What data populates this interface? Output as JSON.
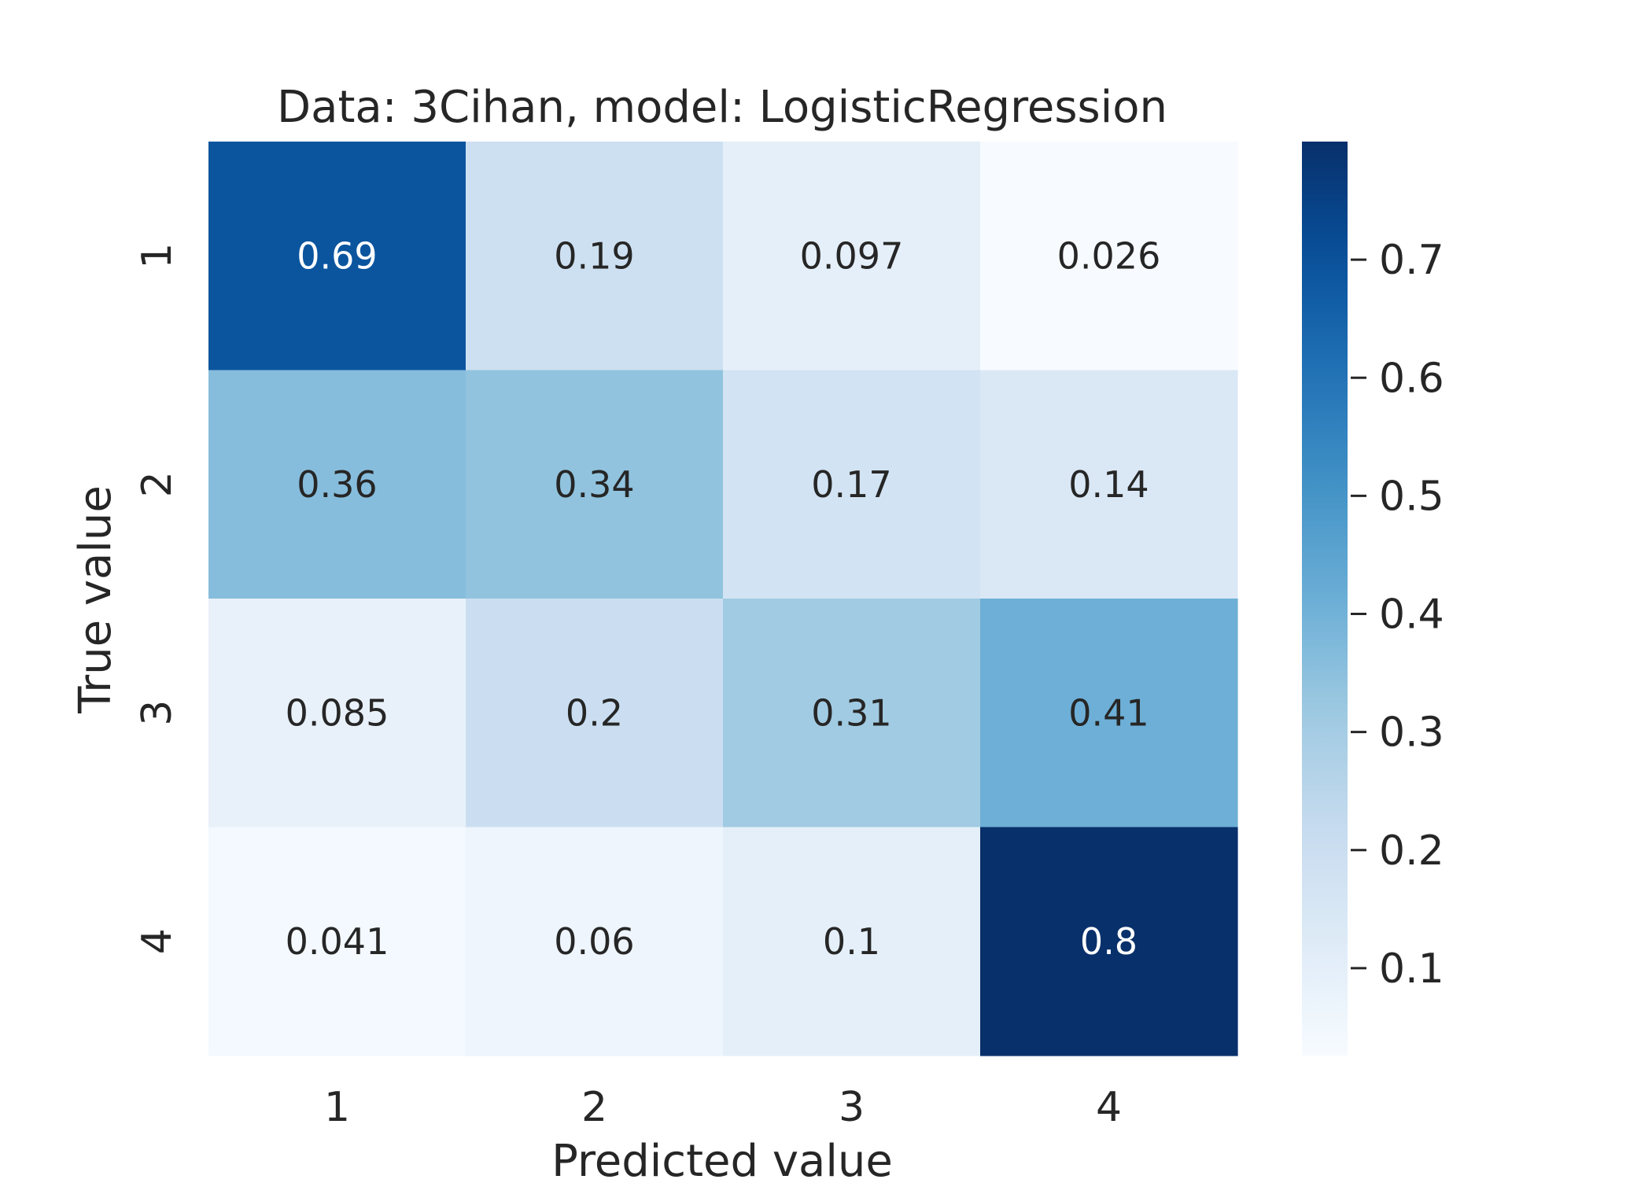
{
  "chart_data": {
    "type": "heatmap",
    "title": "Data: 3Cihan, model: LogisticRegression",
    "xlabel": "Predicted value",
    "ylabel": "True value",
    "x_categories": [
      "1",
      "2",
      "3",
      "4"
    ],
    "y_categories": [
      "1",
      "2",
      "3",
      "4"
    ],
    "values": [
      [
        0.69,
        0.19,
        0.097,
        0.026
      ],
      [
        0.36,
        0.34,
        0.17,
        0.14
      ],
      [
        0.085,
        0.2,
        0.31,
        0.41
      ],
      [
        0.041,
        0.06,
        0.1,
        0.8
      ]
    ],
    "cell_labels": [
      [
        "0.69",
        "0.19",
        "0.097",
        "0.026"
      ],
      [
        "0.36",
        "0.34",
        "0.17",
        "0.14"
      ],
      [
        "0.085",
        "0.2",
        "0.31",
        "0.41"
      ],
      [
        "0.041",
        "0.06",
        "0.1",
        "0.8"
      ]
    ],
    "colormap": "Blues",
    "colorbar": {
      "range": [
        0.026,
        0.8
      ],
      "ticks": [
        0.1,
        0.2,
        0.3,
        0.4,
        0.5,
        0.6,
        0.7
      ],
      "tick_labels": [
        "0.1",
        "0.2",
        "0.3",
        "0.4",
        "0.5",
        "0.6",
        "0.7"
      ]
    },
    "grid": false,
    "legend": "colorbar-right"
  }
}
